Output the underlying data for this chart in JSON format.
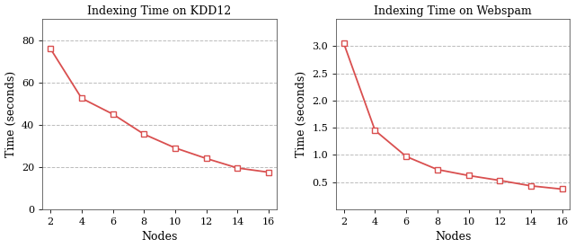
{
  "kdd12": {
    "title": "Indexing Time on KDD12",
    "nodes": [
      2,
      4,
      6,
      8,
      10,
      12,
      14,
      16
    ],
    "times": [
      76,
      52.5,
      45,
      35.5,
      29,
      24,
      19.5,
      17.5
    ],
    "ylim": [
      0,
      90
    ],
    "yticks": [
      0,
      20,
      40,
      60,
      80
    ],
    "xlim": [
      1.5,
      16.5
    ],
    "xlabel": "Nodes",
    "ylabel": "Time (seconds)"
  },
  "webspam": {
    "title": "Indexing Time on Webspam",
    "nodes": [
      2,
      4,
      6,
      8,
      10,
      12,
      14,
      16
    ],
    "times": [
      3.05,
      1.45,
      0.97,
      0.73,
      0.62,
      0.53,
      0.43,
      0.37
    ],
    "ylim": [
      0,
      3.5
    ],
    "yticks": [
      0.5,
      1.0,
      1.5,
      2.0,
      2.5,
      3.0
    ],
    "xlim": [
      1.5,
      16.5
    ],
    "xlabel": "Nodes",
    "ylabel": "Time (seconds)"
  },
  "line_color": "#d94f4f",
  "marker": "s",
  "marker_facecolor": "#ffffff",
  "marker_edgecolor": "#d94f4f",
  "marker_size": 4,
  "linewidth": 1.3,
  "grid_color": "#bbbbbb",
  "grid_style": "--",
  "background_color": "#ffffff",
  "title_fontsize": 9,
  "label_fontsize": 9,
  "tick_fontsize": 8
}
